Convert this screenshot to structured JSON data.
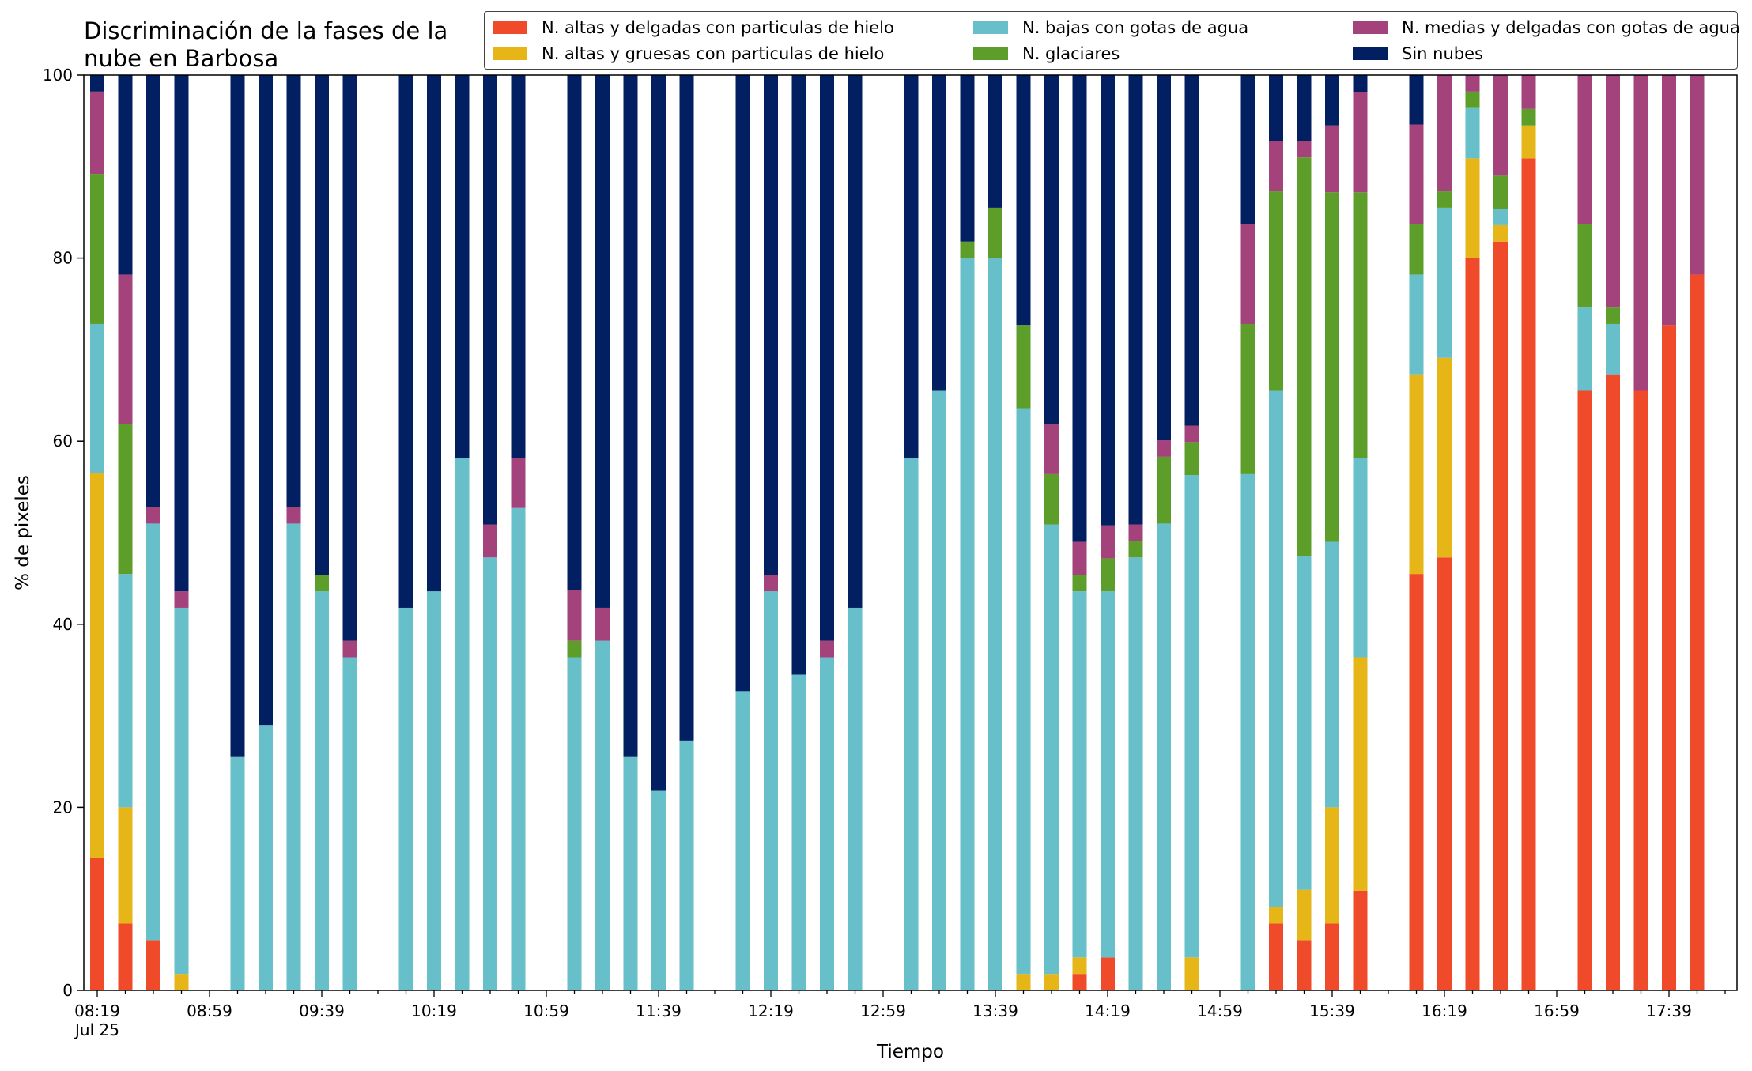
{
  "title": "Discriminación de la fases de la\nnube en Barbosa",
  "colors": {
    "altas_delgadas": "#ef4a2a",
    "altas_gruesas": "#e6b619",
    "bajas": "#66bfc9",
    "glaciares": "#5d9e2b",
    "medias": "#a3427b",
    "sin_nubes": "#021f61"
  },
  "chart_data": {
    "type": "bar",
    "stacked": true,
    "xlabel": "Tiempo",
    "ylabel": "% de pixeles",
    "ylim": [
      0,
      100
    ],
    "yticks": [
      0,
      20,
      40,
      60,
      80,
      100
    ],
    "xtick_labels": [
      "08:19\nJul 25",
      "08:59",
      "09:39",
      "10:19",
      "10:59",
      "11:39",
      "12:19",
      "12:59",
      "13:39",
      "14:19",
      "14:59",
      "15:39",
      "16:19",
      "16:59",
      "17:39"
    ],
    "legend_placement": "top-right",
    "slot_minutes": 10,
    "start_time": "08:19",
    "slot_count": 59,
    "series": [
      {
        "name": "N. altas y delgadas con particulas de hielo",
        "key": "altas_delgadas"
      },
      {
        "name": "N. altas y gruesas con particulas de hielo",
        "key": "altas_gruesas"
      },
      {
        "name": "N. bajas con gotas de agua",
        "key": "bajas"
      },
      {
        "name": "N. glaciares",
        "key": "glaciares"
      },
      {
        "name": "N. medias y delgadas con gotas de agua",
        "key": "medias"
      },
      {
        "name": "Sin nubes",
        "key": "sin_nubes"
      }
    ],
    "bars": [
      {
        "time": "08:19",
        "values": [
          14.5,
          42,
          16.3,
          16.4,
          9,
          1.8
        ]
      },
      {
        "time": "08:29",
        "values": [
          7.3,
          12.7,
          25.5,
          16.4,
          16.3,
          21.8
        ]
      },
      {
        "time": "08:39",
        "values": [
          5.5,
          0,
          45.5,
          0,
          1.8,
          47.2
        ]
      },
      {
        "time": "08:49",
        "values": [
          0,
          1.8,
          40,
          0,
          1.8,
          56.4
        ]
      },
      {
        "time": "09:09",
        "values": [
          0,
          0,
          25.5,
          0,
          0,
          74.5
        ]
      },
      {
        "time": "09:19",
        "values": [
          0,
          0,
          29,
          0,
          0,
          71
        ]
      },
      {
        "time": "09:29",
        "values": [
          0,
          0,
          51,
          0,
          1.8,
          47.2
        ]
      },
      {
        "time": "09:39",
        "values": [
          0,
          0,
          43.6,
          1.8,
          0,
          54.6
        ]
      },
      {
        "time": "09:49",
        "values": [
          0,
          0,
          36.4,
          0,
          1.8,
          61.8
        ]
      },
      {
        "time": "10:09",
        "values": [
          0,
          0,
          41.8,
          0,
          0,
          58.2
        ]
      },
      {
        "time": "10:19",
        "values": [
          0,
          0,
          43.6,
          0,
          0,
          56.4
        ]
      },
      {
        "time": "10:29",
        "values": [
          0,
          0,
          58.2,
          0,
          0,
          41.8
        ]
      },
      {
        "time": "10:39",
        "values": [
          0,
          0,
          47.3,
          0,
          3.6,
          49.1
        ]
      },
      {
        "time": "10:49",
        "values": [
          0,
          0,
          52.7,
          0,
          5.5,
          41.8
        ]
      },
      {
        "time": "11:09",
        "values": [
          0,
          0,
          36.4,
          1.8,
          5.5,
          56.3
        ]
      },
      {
        "time": "11:19",
        "values": [
          0,
          0,
          38.2,
          0,
          3.6,
          58.2
        ]
      },
      {
        "time": "11:29",
        "values": [
          0,
          0,
          25.5,
          0,
          0,
          74.5
        ]
      },
      {
        "time": "11:39",
        "values": [
          0,
          0,
          21.8,
          0,
          0,
          78.2
        ]
      },
      {
        "time": "11:49",
        "values": [
          0,
          0,
          27.3,
          0,
          0,
          72.7
        ]
      },
      {
        "time": "12:09",
        "values": [
          0,
          0,
          32.7,
          0,
          0,
          67.3
        ]
      },
      {
        "time": "12:19",
        "values": [
          0,
          0,
          43.6,
          0,
          1.8,
          54.6
        ]
      },
      {
        "time": "12:29",
        "values": [
          0,
          0,
          34.5,
          0,
          0,
          65.5
        ]
      },
      {
        "time": "12:39",
        "values": [
          0,
          0,
          36.4,
          0,
          1.8,
          61.8
        ]
      },
      {
        "time": "12:49",
        "values": [
          0,
          0,
          41.8,
          0,
          0,
          58.2
        ]
      },
      {
        "time": "13:09",
        "values": [
          0,
          0,
          58.2,
          0,
          0,
          41.8
        ]
      },
      {
        "time": "13:19",
        "values": [
          0,
          0,
          65.5,
          0,
          0,
          34.5
        ]
      },
      {
        "time": "13:29",
        "values": [
          0,
          0,
          80,
          1.8,
          0,
          18.2
        ]
      },
      {
        "time": "13:39",
        "values": [
          0,
          0,
          80,
          5.5,
          0,
          14.5
        ]
      },
      {
        "time": "13:49",
        "values": [
          0,
          1.8,
          61.8,
          9.1,
          0,
          27.3
        ]
      },
      {
        "time": "13:59",
        "values": [
          0,
          1.8,
          49.1,
          5.5,
          5.5,
          38.1
        ]
      },
      {
        "time": "14:09",
        "values": [
          1.8,
          1.8,
          40,
          1.8,
          3.6,
          51
        ]
      },
      {
        "time": "14:19",
        "values": [
          3.6,
          0,
          40,
          3.6,
          3.6,
          49.2
        ]
      },
      {
        "time": "14:29",
        "values": [
          0,
          0,
          47.3,
          1.8,
          1.8,
          49.1
        ]
      },
      {
        "time": "14:39",
        "values": [
          0,
          0,
          51,
          7.3,
          1.8,
          39.9
        ]
      },
      {
        "time": "14:49",
        "values": [
          0,
          3.6,
          52.7,
          3.6,
          1.8,
          38.3
        ]
      },
      {
        "time": "15:09",
        "values": [
          0,
          0,
          56.4,
          16.4,
          10.9,
          16.3
        ]
      },
      {
        "time": "15:19",
        "values": [
          7.3,
          1.8,
          56.4,
          21.8,
          5.5,
          7.2
        ]
      },
      {
        "time": "15:29",
        "values": [
          5.5,
          5.5,
          36.4,
          43.6,
          1.8,
          7.2
        ]
      },
      {
        "time": "15:39",
        "values": [
          7.3,
          12.7,
          29,
          38.2,
          7.3,
          5.5
        ]
      },
      {
        "time": "15:49",
        "values": [
          10.9,
          25.5,
          21.8,
          29,
          10.9,
          1.9
        ]
      },
      {
        "time": "16:09",
        "values": [
          45.5,
          21.8,
          10.9,
          5.5,
          10.9,
          5.4
        ]
      },
      {
        "time": "16:19",
        "values": [
          47.3,
          21.8,
          16.4,
          1.8,
          12.7,
          0
        ]
      },
      {
        "time": "16:29",
        "values": [
          80,
          10.9,
          5.5,
          1.8,
          1.8,
          0
        ]
      },
      {
        "time": "16:39",
        "values": [
          81.8,
          1.8,
          1.8,
          3.6,
          11,
          0
        ]
      },
      {
        "time": "16:49",
        "values": [
          90.9,
          3.6,
          0,
          1.8,
          3.7,
          0
        ]
      },
      {
        "time": "17:09",
        "values": [
          65.5,
          0,
          9.1,
          9.1,
          16.3,
          0
        ]
      },
      {
        "time": "17:19",
        "values": [
          67.3,
          0,
          5.5,
          1.8,
          25.4,
          0
        ]
      },
      {
        "time": "17:29",
        "values": [
          65.5,
          0,
          0,
          0,
          34.5,
          0
        ]
      },
      {
        "time": "17:39",
        "values": [
          72.7,
          0,
          0,
          0,
          27.3,
          0
        ]
      },
      {
        "time": "17:49",
        "values": [
          78.2,
          0,
          0,
          0,
          21.8,
          0
        ]
      }
    ]
  }
}
